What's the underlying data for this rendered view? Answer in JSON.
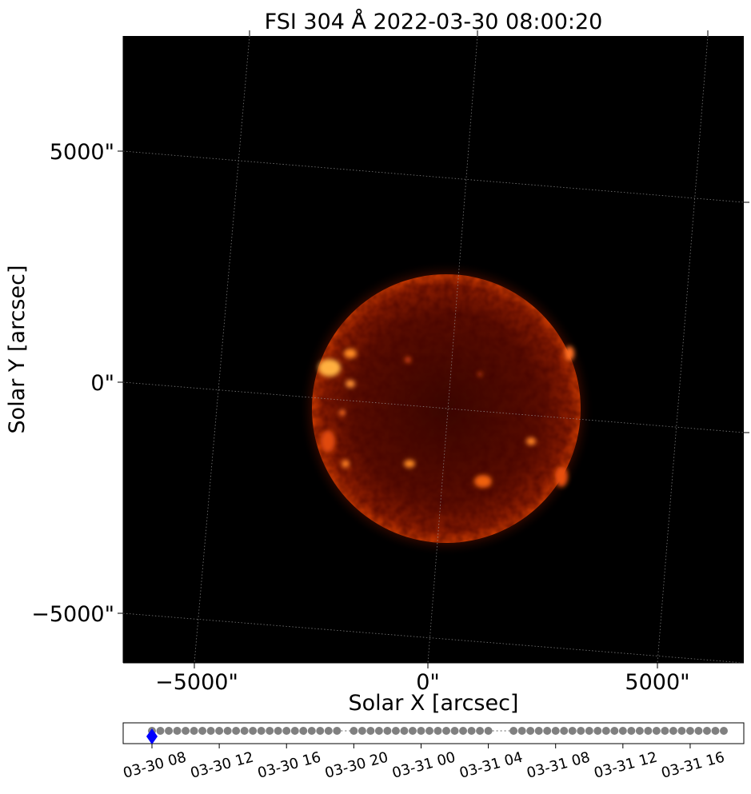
{
  "chart_data": [
    {
      "type": "image",
      "title": "FSI 304 Å 2022-03-30 08:00:20",
      "xlabel": "Solar X [arcsec]",
      "ylabel": "Solar Y [arcsec]",
      "x_ticks": [
        "−5000\"",
        "0\"",
        "5000\""
      ],
      "y_ticks": [
        "5000\"",
        "0\"",
        "−5000\""
      ],
      "x_tick_values": [
        -5000,
        0,
        5000
      ],
      "y_tick_values": [
        5000,
        0,
        -5000
      ],
      "grid": true,
      "colormap": "solar-304-red"
    },
    {
      "type": "scatter",
      "role": "timeline",
      "x_ticks": [
        "03-30 08",
        "03-30 12",
        "03-30 16",
        "03-30 20",
        "03-31 00",
        "03-31 04",
        "03-31 08",
        "03-31 12",
        "03-31 16"
      ],
      "tick_hours": [
        0,
        4,
        8,
        12,
        16,
        20,
        24,
        28,
        32
      ],
      "observation_hours": [
        0,
        0.5,
        1,
        1.5,
        2,
        2.5,
        3,
        3.5,
        4,
        4.5,
        5,
        5.5,
        6,
        6.5,
        7,
        7.5,
        8,
        8.5,
        9,
        9.5,
        10,
        10.5,
        11,
        12,
        12.5,
        13,
        13.5,
        14,
        14.5,
        15,
        15.5,
        16,
        16.5,
        17,
        17.5,
        18,
        18.5,
        19,
        19.5,
        20,
        21.5,
        22,
        22.5,
        23,
        23.5,
        24,
        24.5,
        25,
        25.5,
        26,
        26.5,
        27,
        27.5,
        28,
        28.5,
        29,
        29.5,
        30,
        30.5,
        31,
        31.5,
        32,
        32.5,
        33,
        33.5,
        34
      ],
      "gaps": [
        [
          11,
          12
        ],
        [
          20,
          21.5
        ]
      ],
      "current_hour": 0,
      "colors": {
        "points": "#808080",
        "current": "#0000ff"
      }
    }
  ]
}
